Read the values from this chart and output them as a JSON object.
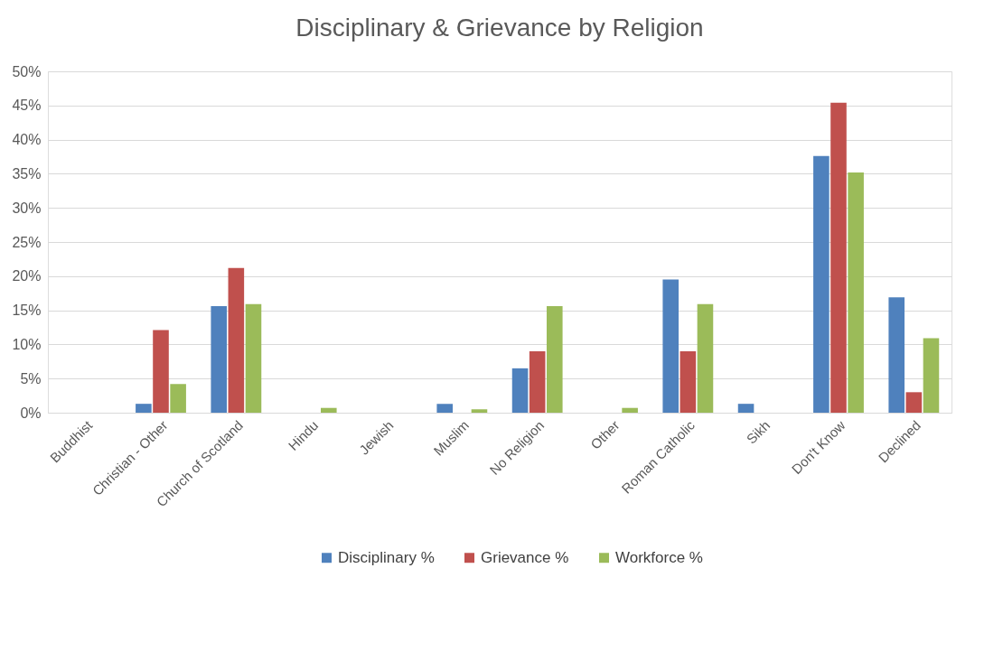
{
  "chart_data": {
    "type": "bar",
    "title": "Disciplinary & Grievance by Religion",
    "categories": [
      "Buddhist",
      "Christian - Other",
      "Church of Scotland",
      "Hindu",
      "Jewish",
      "Muslim",
      "No Religion",
      "Other",
      "Roman Catholic",
      "Sikh",
      "Don't Know",
      "Declined"
    ],
    "series": [
      {
        "name": "Disciplinary %",
        "color": "#4f81bd",
        "values": [
          0,
          1.3,
          15.6,
          0,
          0,
          1.3,
          6.5,
          0,
          19.5,
          1.3,
          37.6,
          16.9
        ]
      },
      {
        "name": "Grievance %",
        "color": "#c0504d",
        "values": [
          0,
          12.1,
          21.2,
          0,
          0,
          0,
          9.0,
          0,
          9.0,
          0,
          45.4,
          3.0
        ]
      },
      {
        "name": "Workforce %",
        "color": "#9bbb59",
        "values": [
          0,
          4.2,
          15.9,
          0.7,
          0,
          0.5,
          15.6,
          0.7,
          15.9,
          0,
          35.2,
          10.9
        ]
      }
    ],
    "ylim": [
      0,
      50
    ],
    "yticks": [
      {
        "value": 0,
        "label": "0%"
      },
      {
        "value": 5,
        "label": "5%"
      },
      {
        "value": 10,
        "label": "10%"
      },
      {
        "value": 15,
        "label": "15%"
      },
      {
        "value": 20,
        "label": "20%"
      },
      {
        "value": 25,
        "label": "25%"
      },
      {
        "value": 30,
        "label": "30%"
      },
      {
        "value": 35,
        "label": "35%"
      },
      {
        "value": 40,
        "label": "40%"
      },
      {
        "value": 45,
        "label": "45%"
      },
      {
        "value": 50,
        "label": "50%"
      }
    ],
    "grid": "y",
    "legend": "bottom"
  }
}
